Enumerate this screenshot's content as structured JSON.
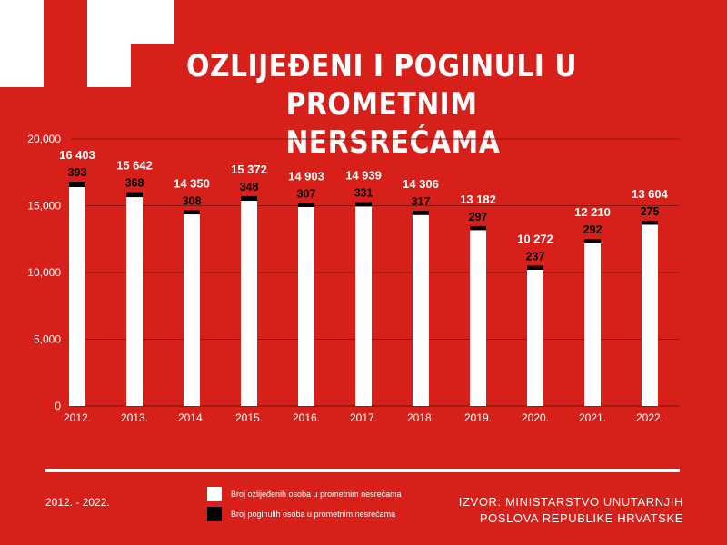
{
  "header": {
    "title_line1": "OZLIJEĐENI I POGINULI U PROMETNIM",
    "title_line2": "NERSREĆAMA"
  },
  "footer": {
    "period": "2012. - 2022.",
    "source_line1": "IZVOR: MINISTARSTVO UNUTARNJIH",
    "source_line2": "POSLOVA REPUBLIKE HRVATSKE"
  },
  "legend": {
    "injured": "Broj ozlijeđenih osoba u prometnim nesrećama",
    "killed": "Broj poginulih osoba u prometnim nesrećama"
  },
  "colors": {
    "background": "#d8201b",
    "injured": "#ffffff",
    "killed": "#000000",
    "gridline": "#8c1512"
  },
  "chart_data": {
    "type": "bar",
    "stacked": true,
    "categories": [
      "2012.",
      "2013.",
      "2014.",
      "2015.",
      "2016.",
      "2017.",
      "2018.",
      "2019.",
      "2020.",
      "2021.",
      "2022."
    ],
    "series": [
      {
        "name": "Broj ozlijeđenih osoba u prometnim nesrećama",
        "values": [
          16403,
          15642,
          14350,
          15372,
          14903,
          14939,
          14306,
          13182,
          10272,
          12210,
          13604
        ],
        "labels": [
          "16 403",
          "15 642",
          "14 350",
          "15 372",
          "14 903",
          "14 939",
          "14 306",
          "13 182",
          "10 272",
          "12 210",
          "13 604"
        ]
      },
      {
        "name": "Broj poginulih osoba u prometnim nesrećama",
        "values": [
          393,
          368,
          308,
          348,
          307,
          331,
          317,
          297,
          237,
          292,
          275
        ],
        "labels": [
          "393",
          "368",
          "308",
          "348",
          "307",
          "331",
          "317",
          "297",
          "237",
          "292",
          "275"
        ]
      }
    ],
    "yticks": [
      0,
      5000,
      10000,
      15000,
      20000
    ],
    "ytick_labels": [
      "0",
      "5,000",
      "10,000",
      "15,000",
      "20,000"
    ],
    "ylim": [
      0,
      20000
    ],
    "grid": true
  }
}
